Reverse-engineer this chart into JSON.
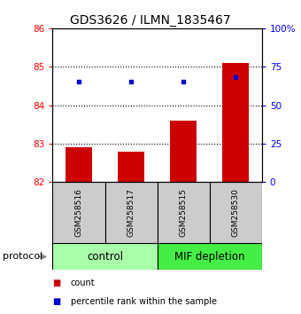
{
  "title": "GDS3626 / ILMN_1835467",
  "samples": [
    "GSM258516",
    "GSM258517",
    "GSM258515",
    "GSM258530"
  ],
  "bar_values": [
    82.9,
    82.8,
    83.6,
    85.1
  ],
  "bar_base": 82.0,
  "blue_dot_values": [
    84.62,
    84.62,
    84.62,
    84.72
  ],
  "ylim_left": [
    82,
    86
  ],
  "ylim_right": [
    0,
    100
  ],
  "yticks_left": [
    82,
    83,
    84,
    85,
    86
  ],
  "yticks_right": [
    0,
    25,
    50,
    75,
    100
  ],
  "ytick_labels_right": [
    "0",
    "25",
    "50",
    "75",
    "100%"
  ],
  "bar_color": "#cc0000",
  "dot_color": "#0000cc",
  "groups": [
    {
      "label": "control",
      "indices": [
        0,
        1
      ],
      "color": "#aaffaa"
    },
    {
      "label": "MIF depletion",
      "indices": [
        2,
        3
      ],
      "color": "#44ee44"
    }
  ],
  "protocol_label": "protocol",
  "legend_items": [
    {
      "color": "#cc0000",
      "label": "count"
    },
    {
      "color": "#0000cc",
      "label": "percentile rank within the sample"
    }
  ],
  "title_fontsize": 10,
  "tick_fontsize": 7.5,
  "sample_label_fontsize": 6.5,
  "group_label_fontsize": 8.5
}
